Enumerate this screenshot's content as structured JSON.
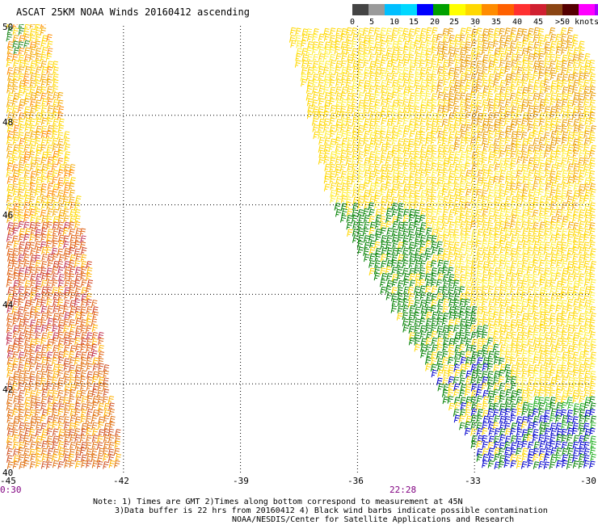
{
  "header": {
    "title": "ASCAT 25KM NOAA Winds 20160412 ascending"
  },
  "legend": {
    "segments": [
      {
        "color": "#444444"
      },
      {
        "color": "#9a9a9a"
      },
      {
        "color": "#00bfff"
      },
      {
        "color": "#00d8ff"
      },
      {
        "color": "#0000ff"
      },
      {
        "color": "#00a000"
      },
      {
        "color": "#ffff00"
      },
      {
        "color": "#ffd800"
      },
      {
        "color": "#ff8c00"
      },
      {
        "color": "#ff6000"
      },
      {
        "color": "#ff3030"
      },
      {
        "color": "#d02030"
      },
      {
        "color": "#8b4513"
      },
      {
        "color": "#550000"
      },
      {
        "color": "#ff00ff"
      },
      {
        "color": "#aa00ff"
      }
    ],
    "labels": [
      "0",
      "5",
      "10",
      "15",
      "20",
      "25",
      "30",
      "35",
      "40",
      "45",
      ">50 knots"
    ]
  },
  "map": {
    "lon_labels": [
      "-45",
      "-42",
      "-39",
      "-36",
      "-33",
      "-30"
    ],
    "lat_labels": [
      "50",
      "48",
      "46",
      "44",
      "42",
      "40"
    ],
    "time_labels": [
      "0:30",
      "22:28"
    ],
    "lon_range": [
      -45,
      -30
    ],
    "lat_range": [
      40,
      50
    ],
    "swaths": [
      {
        "name": "western swath",
        "polygon_lonlat": [
          [
            -45,
            50
          ],
          [
            -44.0,
            50
          ],
          [
            -42.05,
            40
          ],
          [
            -45,
            40
          ]
        ],
        "dominant_speed_knots": "25-35"
      },
      {
        "name": "eastern swath",
        "polygon_lonlat": [
          [
            -37.8,
            49.8
          ],
          [
            -30.5,
            49.8
          ],
          [
            -30,
            49
          ],
          [
            -30,
            40
          ],
          [
            -32.8,
            40
          ],
          [
            -36.8,
            46.1
          ]
        ],
        "dominant_speed_knots": "15-30"
      }
    ]
  },
  "notes": {
    "line1": "Note: 1) Times are GMT 2)Times along bottom correspond to measurement at 45N",
    "line2": "3)Data buffer is 22 hrs from 20160412 4) Black wind barbs indicate possible contamination",
    "line3": "NOAA/NESDIS/Center for Satellite Applications and Research"
  }
}
